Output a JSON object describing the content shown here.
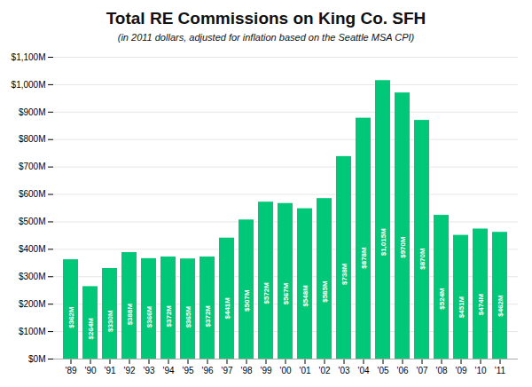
{
  "chart_data": {
    "type": "bar",
    "title": "Total RE Commissions on King Co. SFH",
    "subtitle": "(in 2011 dollars, adjusted for inflation based on the Seattle MSA CPI)",
    "categories": [
      "'89",
      "'90",
      "'91",
      "'92",
      "'93",
      "'94",
      "'95",
      "'96",
      "'97",
      "'98",
      "'99",
      "'00",
      "'01",
      "'02",
      "'03",
      "'04",
      "'05",
      "'06",
      "'07",
      "'08",
      "'09",
      "'10",
      "'11"
    ],
    "values": [
      362,
      264,
      330,
      388,
      366,
      372,
      365,
      372,
      441,
      507,
      572,
      567,
      548,
      585,
      738,
      878,
      1015,
      970,
      870,
      524,
      451,
      474,
      462
    ],
    "value_labels": [
      "$362M",
      "$264M",
      "$330M",
      "$388M",
      "$366M",
      "$372M",
      "$365M",
      "$372M",
      "$441M",
      "$507M",
      "$572M",
      "$567M",
      "$548M",
      "$585M",
      "$738M",
      "$878M",
      "$1,015M",
      "$970M",
      "$870M",
      "$524M",
      "$451M",
      "$474M",
      "$462M"
    ],
    "data_labels": true,
    "color": "#00C878",
    "ylim": [
      0,
      1100
    ],
    "yticks": [
      {
        "value": 0,
        "label": "$0M"
      },
      {
        "value": 100,
        "label": "$100M"
      },
      {
        "value": 200,
        "label": "$200M"
      },
      {
        "value": 300,
        "label": "$300M"
      },
      {
        "value": 400,
        "label": "$400M"
      },
      {
        "value": 500,
        "label": "$500M"
      },
      {
        "value": 600,
        "label": "$600M"
      },
      {
        "value": 700,
        "label": "$700M"
      },
      {
        "value": 800,
        "label": "$800M"
      },
      {
        "value": 900,
        "label": "$900M"
      },
      {
        "value": 1000,
        "label": "$1,000M"
      },
      {
        "value": 1100,
        "label": "$1,100M"
      }
    ],
    "grid": true
  }
}
